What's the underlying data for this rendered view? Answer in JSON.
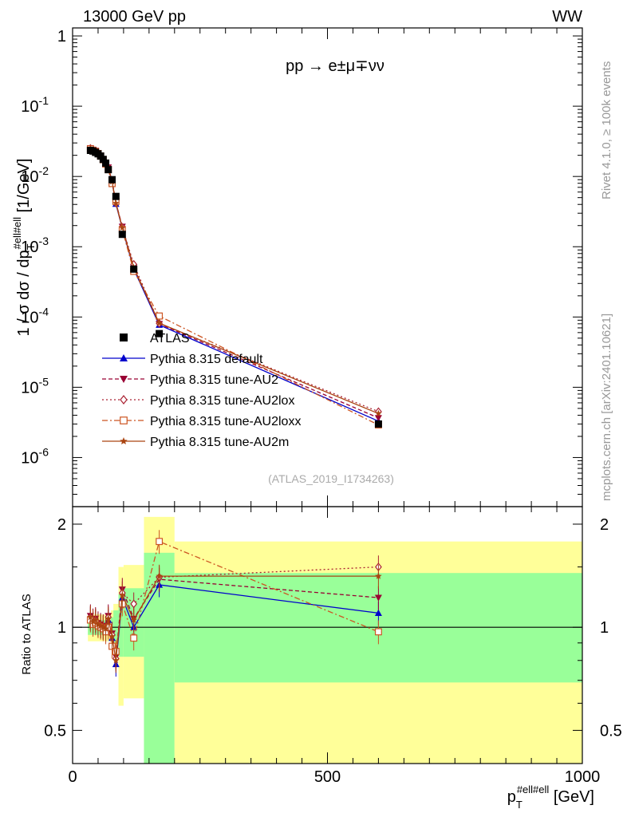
{
  "header": {
    "left": "13000 GeV pp",
    "right": "WW"
  },
  "side": {
    "rivet": "Rivet 4.1.0, ≥ 100k events",
    "mcplots": "mcplots.cern.ch [arXiv:2401.10621]"
  },
  "chart_data": {
    "type": "scatter",
    "process": "pp → e±μ∓νν",
    "analysis": "(ATLAS_2019_I1734263)",
    "ylabel_main": "1 / σ dσ / dp_T^{#ell#ell} [1/GeV]",
    "ylabel_ratio": "Ratio to ATLAS",
    "xlabel": "p_T^{#ell#ell} [GeV]",
    "xlim": [
      0,
      1000
    ],
    "ylim_main": [
      2e-07,
      1.3
    ],
    "ylim_ratio": [
      0.4,
      2.25
    ],
    "x_ticks": [
      "0",
      "500",
      "1000"
    ],
    "y_ticks_main": [
      "1",
      "10^-1",
      "10^-2",
      "10^-3",
      "10^-4",
      "10^-5",
      "10^-6"
    ],
    "y_ticks_ratio": [
      "0.5",
      "1",
      "2"
    ],
    "legend_position": "lower-left",
    "data": {
      "name": "ATLAS",
      "x": [
        35,
        40,
        45,
        50,
        55,
        60,
        65,
        70,
        77.5,
        85,
        97.5,
        120,
        170,
        600
      ],
      "y": [
        0.0235,
        0.023,
        0.022,
        0.021,
        0.0195,
        0.0175,
        0.0155,
        0.0125,
        0.009,
        0.0052,
        0.0015,
        0.00048,
        5.8e-05,
        3e-06
      ],
      "band_x": [
        30,
        75,
        80,
        90,
        100,
        140,
        200,
        1000
      ],
      "band_stat_lo": [
        0.95,
        0.93,
        0.9,
        0.82,
        0.82,
        0.38,
        0.69
      ],
      "band_stat_hi": [
        1.05,
        1.07,
        1.12,
        1.25,
        1.3,
        1.65,
        1.44
      ],
      "band_tot_lo": [
        0.91,
        0.88,
        0.85,
        0.59,
        0.62,
        0.38,
        0.36
      ],
      "band_tot_hi": [
        1.09,
        1.12,
        1.17,
        1.5,
        1.52,
        2.1,
        1.78
      ]
    },
    "series": [
      {
        "name": "Pythia 8.315 default",
        "color": "#0000cc",
        "marker": "triangle-up",
        "ratio": [
          1.06,
          1.03,
          1.04,
          1.02,
          1.01,
          1.0,
          0.98,
          1.05,
          0.93,
          0.78,
          1.22,
          1.0,
          1.33,
          1.1
        ]
      },
      {
        "name": "Pythia 8.315 tune-AU2",
        "color": "#990033",
        "marker": "triangle-down",
        "ratio": [
          1.08,
          1.05,
          1.06,
          1.03,
          1.02,
          1.01,
          1.0,
          1.08,
          0.96,
          0.82,
          1.29,
          1.06,
          1.38,
          1.22
        ]
      },
      {
        "name": "Pythia 8.315 tune-AU2lox",
        "color": "#aa2233",
        "marker": "diamond-open",
        "ratio": [
          1.07,
          1.04,
          1.05,
          1.02,
          1.01,
          1.0,
          0.99,
          1.07,
          0.95,
          0.81,
          1.26,
          1.17,
          1.4,
          1.5
        ]
      },
      {
        "name": "Pythia 8.315 tune-AU2loxx",
        "color": "#cc5522",
        "marker": "square-open",
        "ratio": [
          1.05,
          1.02,
          1.03,
          1.01,
          1.0,
          0.99,
          0.97,
          1.0,
          0.88,
          0.85,
          1.17,
          0.93,
          1.78,
          0.97
        ]
      },
      {
        "name": "Pythia 8.315 tune-AU2m",
        "color": "#aa4411",
        "marker": "star",
        "ratio": [
          1.07,
          1.04,
          1.05,
          1.02,
          1.01,
          1.0,
          0.99,
          1.06,
          0.94,
          0.8,
          1.24,
          1.05,
          1.41,
          1.41
        ]
      }
    ]
  }
}
